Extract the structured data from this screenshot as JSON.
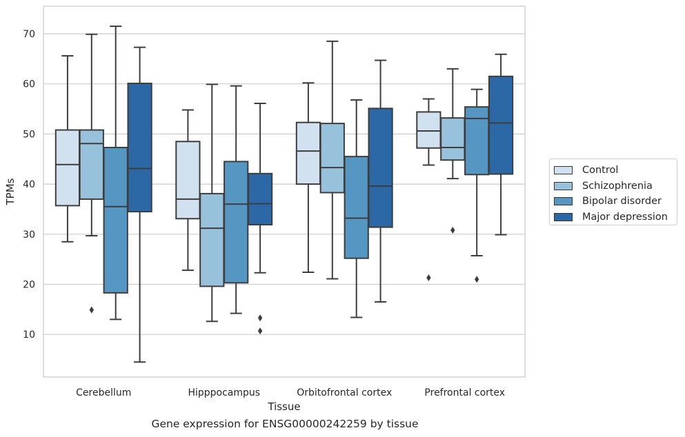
{
  "chart_data": {
    "type": "box",
    "title": "",
    "caption": "Gene expression for ENSG00000242259 by tissue",
    "xlabel": "Tissue",
    "ylabel": "TPMs",
    "ylim": [
      1.5,
      75.5
    ],
    "yticks": [
      10,
      20,
      30,
      40,
      50,
      60,
      70
    ],
    "grid": true,
    "legend_position": "right",
    "categories": [
      "Cerebellum",
      "Hipppocampus",
      "Orbitofrontal cortex",
      "Prefrontal cortex"
    ],
    "series": [
      {
        "name": "Control",
        "color": "#d1e1f0",
        "boxes": [
          {
            "whislo": 28.5,
            "q1": 35.7,
            "med": 43.9,
            "q3": 50.8,
            "whishi": 65.6,
            "fliers": []
          },
          {
            "whislo": 22.8,
            "q1": 33.1,
            "med": 37.0,
            "q3": 48.5,
            "whishi": 54.8,
            "fliers": []
          },
          {
            "whislo": 22.4,
            "q1": 40.0,
            "med": 46.6,
            "q3": 52.3,
            "whishi": 60.2,
            "fliers": []
          },
          {
            "whislo": 43.8,
            "q1": 47.2,
            "med": 50.6,
            "q3": 54.4,
            "whishi": 57.0,
            "fliers": [
              21.3
            ]
          }
        ]
      },
      {
        "name": "Schizophrenia",
        "color": "#98c1dc",
        "boxes": [
          {
            "whislo": 29.7,
            "q1": 37.0,
            "med": 48.1,
            "q3": 50.8,
            "whishi": 69.9,
            "fliers": [
              14.9
            ]
          },
          {
            "whislo": 12.6,
            "q1": 19.6,
            "med": 31.2,
            "q3": 38.1,
            "whishi": 59.9,
            "fliers": []
          },
          {
            "whislo": 21.1,
            "q1": 38.3,
            "med": 43.3,
            "q3": 52.1,
            "whishi": 68.5,
            "fliers": []
          },
          {
            "whislo": 41.1,
            "q1": 44.8,
            "med": 47.3,
            "q3": 53.2,
            "whishi": 63.0,
            "fliers": [
              30.8
            ]
          }
        ]
      },
      {
        "name": "Bipolar disorder",
        "color": "#5596c3",
        "boxes": [
          {
            "whislo": 13.0,
            "q1": 18.3,
            "med": 35.5,
            "q3": 47.3,
            "whishi": 71.5,
            "fliers": []
          },
          {
            "whislo": 14.2,
            "q1": 20.3,
            "med": 36.0,
            "q3": 44.5,
            "whishi": 59.6,
            "fliers": []
          },
          {
            "whislo": 13.4,
            "q1": 25.2,
            "med": 33.2,
            "q3": 45.5,
            "whishi": 56.8,
            "fliers": []
          },
          {
            "whislo": 25.7,
            "q1": 41.9,
            "med": 53.1,
            "q3": 55.4,
            "whishi": 58.9,
            "fliers": [
              21.0
            ]
          }
        ]
      },
      {
        "name": "Major depression",
        "color": "#2b68a5",
        "boxes": [
          {
            "whislo": 4.5,
            "q1": 34.5,
            "med": 43.1,
            "q3": 60.1,
            "whishi": 67.3,
            "fliers": []
          },
          {
            "whislo": 22.3,
            "q1": 31.9,
            "med": 36.1,
            "q3": 42.1,
            "whishi": 56.1,
            "fliers": [
              13.3,
              10.7
            ]
          },
          {
            "whislo": 16.5,
            "q1": 31.4,
            "med": 39.6,
            "q3": 55.1,
            "whishi": 64.7,
            "fliers": []
          },
          {
            "whislo": 29.9,
            "q1": 42.0,
            "med": 52.2,
            "q3": 61.5,
            "whishi": 65.9,
            "fliers": []
          }
        ]
      }
    ]
  }
}
